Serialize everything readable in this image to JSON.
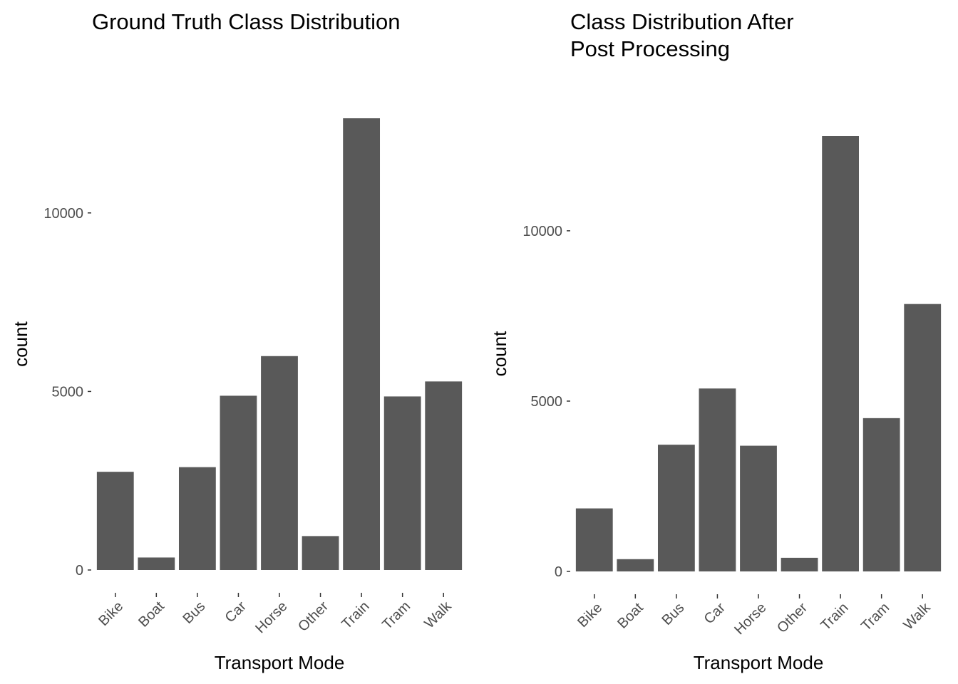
{
  "colors": {
    "bar": "#595959",
    "tick": "#333333",
    "tick_text": "#4d4d4d",
    "background": "#ffffff"
  },
  "chart_data": [
    {
      "type": "bar",
      "title": [
        "Ground Truth Class Distribution"
      ],
      "xlabel": "Transport Mode",
      "ylabel": "count",
      "categories": [
        "Bike",
        "Boat",
        "Bus",
        "Car",
        "Horse",
        "Other",
        "Train",
        "Tram",
        "Walk"
      ],
      "values": [
        2750,
        350,
        2880,
        4880,
        5990,
        950,
        12650,
        4860,
        5280
      ],
      "ylim": [
        0,
        12650
      ],
      "yticks": [
        0,
        5000,
        10000
      ],
      "ytick_labels": [
        "0",
        "5000",
        "10000"
      ],
      "grid": false
    },
    {
      "type": "bar",
      "title": [
        "Class Distribution After",
        "Post Processing"
      ],
      "xlabel": "Transport Mode",
      "ylabel": "count",
      "categories": [
        "Bike",
        "Boat",
        "Bus",
        "Car",
        "Horse",
        "Other",
        "Train",
        "Tram",
        "Walk"
      ],
      "values": [
        1850,
        360,
        3720,
        5370,
        3690,
        400,
        12780,
        4500,
        7850
      ],
      "ylim": [
        0,
        12780
      ],
      "yticks": [
        0,
        5000,
        10000
      ],
      "ytick_labels": [
        "0",
        "5000",
        "10000"
      ],
      "grid": false
    }
  ]
}
